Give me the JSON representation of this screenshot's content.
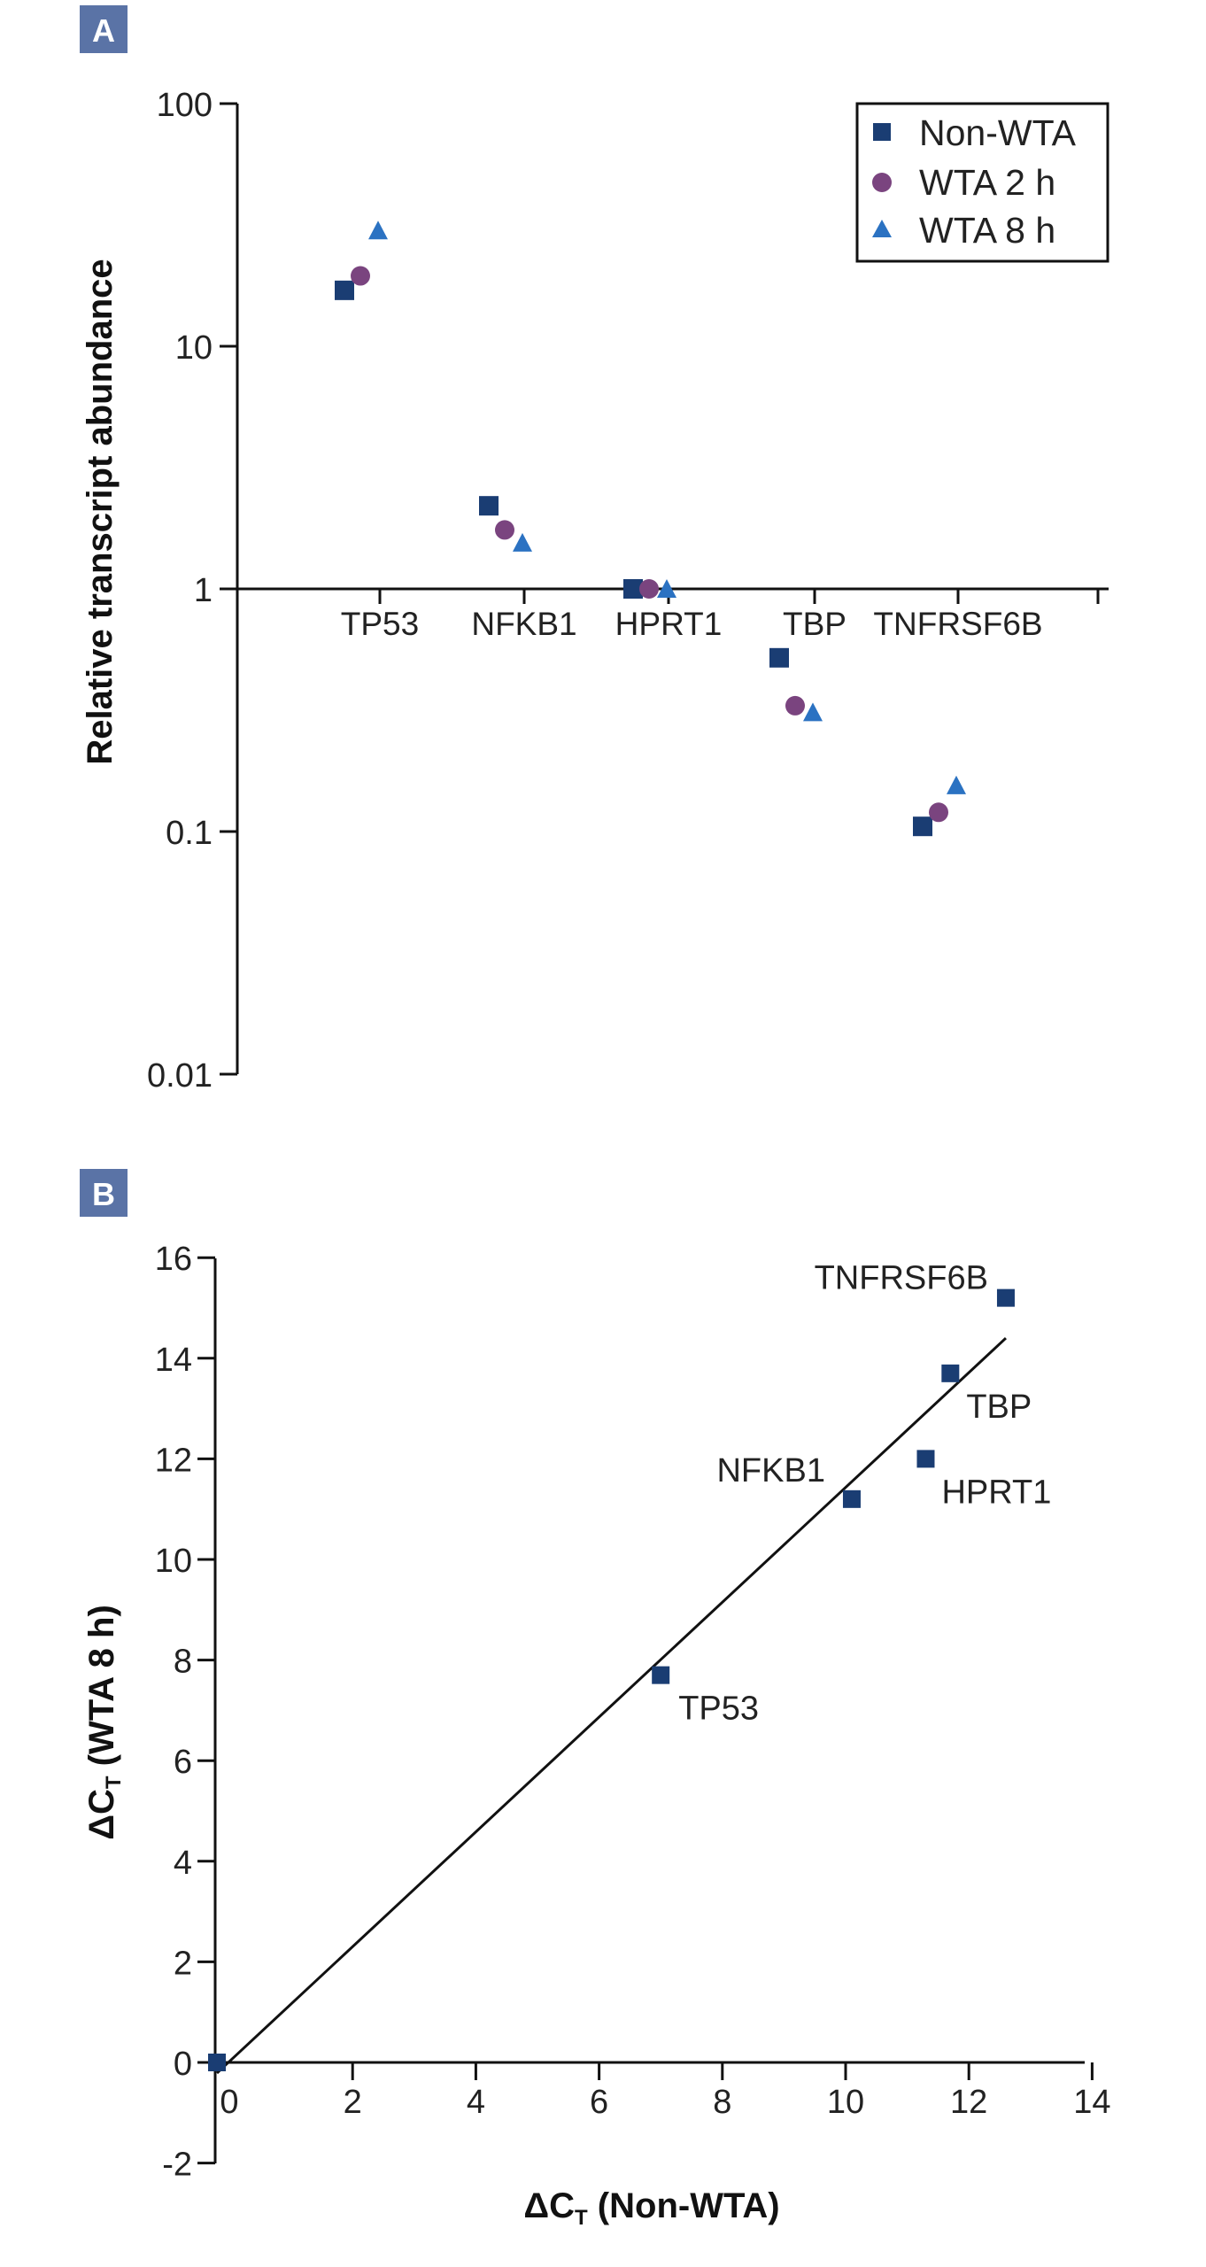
{
  "colors": {
    "non_wta": "#1a3d73",
    "wta_2h": "#7a447f",
    "wta_8h": "#2b72c2",
    "axis": "#111111",
    "panel_badge": "#5a73a6"
  },
  "chart_data": [
    {
      "panel": "A",
      "type": "scatter",
      "title": "",
      "xlabel": "",
      "ylabel": "Relative transcript abundance",
      "yscale": "log",
      "ylim": [
        0.01,
        100
      ],
      "yticks": [
        {
          "value": 100,
          "label": "100"
        },
        {
          "value": 10,
          "label": "10"
        },
        {
          "value": 1,
          "label": "1"
        },
        {
          "value": 0.1,
          "label": "0.1"
        },
        {
          "value": 0.01,
          "label": "0.01"
        }
      ],
      "categories": [
        "TP53",
        "NFKB1",
        "HPRT1",
        "TBP",
        "TNFRSF6B"
      ],
      "legend_position": "top-right",
      "series": [
        {
          "name": "Non-WTA",
          "marker": "square",
          "values": [
            17,
            2.2,
            1.0,
            0.52,
            0.105
          ]
        },
        {
          "name": "WTA 2 h",
          "marker": "circle",
          "values": [
            19.5,
            1.75,
            1.0,
            0.33,
            0.12
          ]
        },
        {
          "name": "WTA 8 h",
          "marker": "triangle",
          "values": [
            30,
            1.55,
            1.0,
            0.31,
            0.155
          ]
        }
      ]
    },
    {
      "panel": "B",
      "type": "scatter",
      "title": "",
      "xlabel": "ΔC<sub>T</sub> (Non-WTA)",
      "xlabel_parts": [
        "ΔC",
        "T",
        " (Non-WTA)"
      ],
      "ylabel_parts": [
        "ΔC",
        "T",
        " (WTA 8 h)"
      ],
      "xlim": [
        -0.2,
        14
      ],
      "ylim": [
        -2,
        16
      ],
      "xticks": [
        0,
        2,
        4,
        6,
        8,
        10,
        12,
        14
      ],
      "yticks": [
        -2,
        0,
        2,
        4,
        6,
        8,
        10,
        12,
        14,
        16
      ],
      "points": [
        {
          "label": "",
          "x": 0,
          "y": 0
        },
        {
          "label": "TP53",
          "x": 7.0,
          "y": 7.7
        },
        {
          "label": "NFKB1",
          "x": 10.1,
          "y": 11.2
        },
        {
          "label": "HPRT1",
          "x": 11.3,
          "y": 12.0
        },
        {
          "label": "TBP",
          "x": 11.7,
          "y": 13.7
        },
        {
          "label": "TNFRSF6B",
          "x": 12.6,
          "y": 15.2
        }
      ],
      "fit_line": {
        "x": [
          0,
          12.6
        ],
        "y": [
          0,
          14.4
        ]
      }
    }
  ]
}
